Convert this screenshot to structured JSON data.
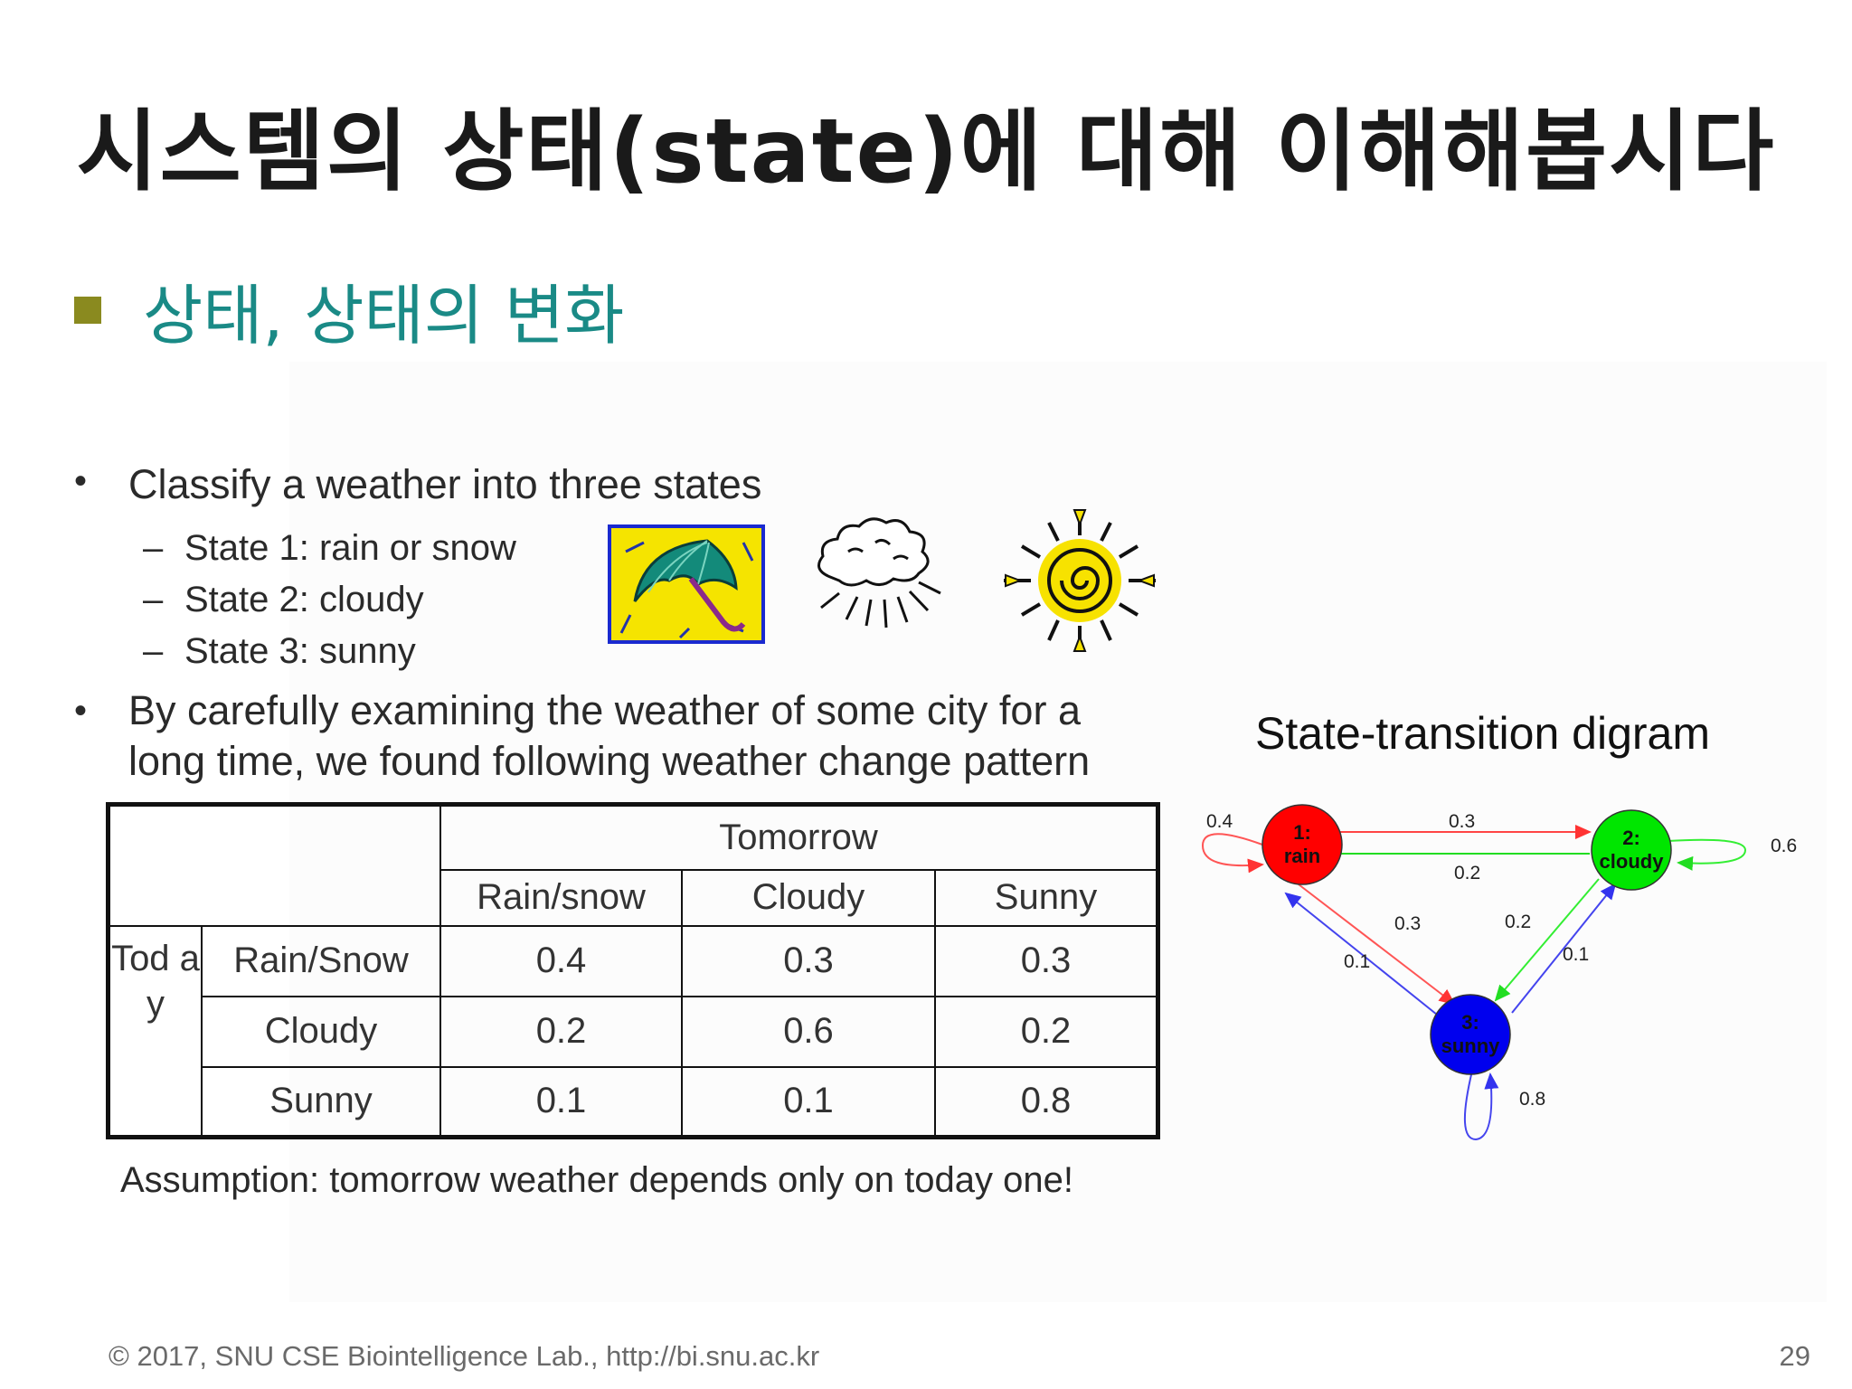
{
  "slide": {
    "title": "시스템의 상태(state)에 대해 이해해봅시다",
    "section": "상태, 상태의 변화"
  },
  "content": {
    "bullet1": "Classify a weather into three states",
    "states": [
      "State 1: rain or snow",
      "State 2: cloudy",
      "State 3: sunny"
    ],
    "bullet2_line1": "By carefully examining the weather of some city for a",
    "bullet2_line2": "long time, we found following weather change pattern",
    "bullet_glyph": "•",
    "dash_glyph": "–"
  },
  "table": {
    "tomorrow": "Tomorrow",
    "today": "Tod ay",
    "columns": [
      "Rain/snow",
      "Cloudy",
      "Sunny"
    ],
    "rows": [
      {
        "label": "Rain/Snow",
        "values": [
          "0.4",
          "0.3",
          "0.3"
        ]
      },
      {
        "label": "Cloudy",
        "values": [
          "0.2",
          "0.6",
          "0.2"
        ]
      },
      {
        "label": "Sunny",
        "values": [
          "0.1",
          "0.1",
          "0.8"
        ]
      }
    ]
  },
  "assumption": "Assumption: tomorrow weather depends only on today one!",
  "diagram": {
    "title": "State-transition digram",
    "nodes": [
      {
        "num": "1:",
        "label": "rain",
        "color": "#ff0000"
      },
      {
        "num": "2:",
        "label": "cloudy",
        "color": "#00e600"
      },
      {
        "num": "3:",
        "label": "sunny",
        "color": "#0000ee"
      }
    ],
    "edge_labels": {
      "rain_self": "0.4",
      "rain_to_cloudy": "0.3",
      "cloudy_to_rain": "0.2",
      "cloudy_self": "0.6",
      "rain_to_sunny": "0.3",
      "sunny_to_rain": "0.1",
      "cloudy_to_sunny": "0.2",
      "sunny_to_cloudy": "0.1",
      "sunny_self": "0.8"
    }
  },
  "footer": {
    "copyright": "© 2017, SNU CSE Biointelligence Lab., http://bi.snu.ac.kr",
    "page": "29"
  },
  "icons": [
    "umbrella-icon",
    "cloud-sun-icon",
    "sun-icon"
  ]
}
